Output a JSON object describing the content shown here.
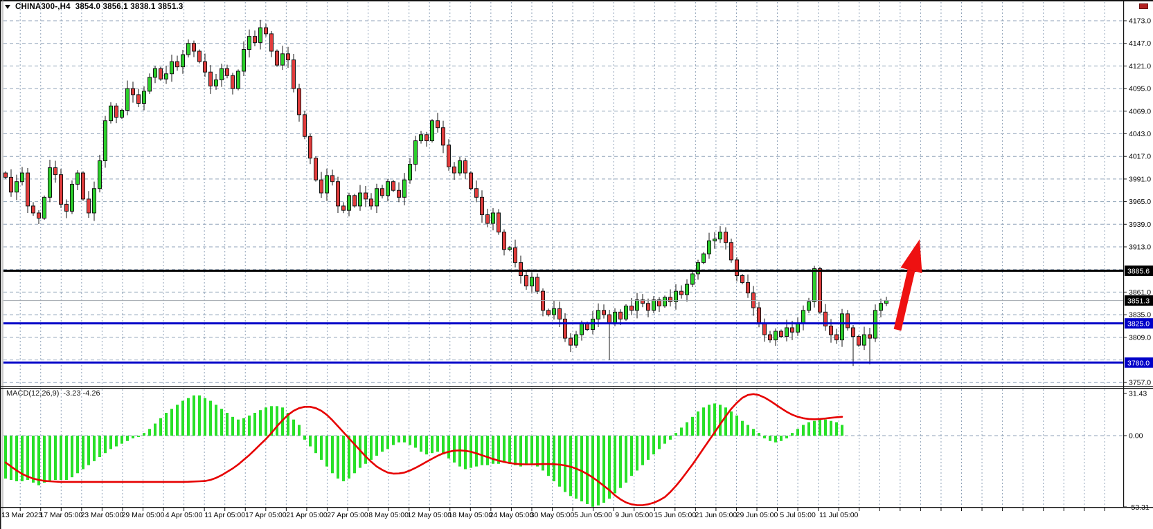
{
  "window": {
    "symbol_period": "CHINA300-,H4",
    "ohlc_text": "3854.0 3856.1 3838.1 3851.3",
    "dropdown_icon": "triangle-down-icon"
  },
  "price_axis": {
    "ticks": [
      "4173.0",
      "4147.0",
      "4121.0",
      "4095.0",
      "4069.0",
      "4043.0",
      "4017.0",
      "3991.0",
      "3965.0",
      "3939.0",
      "3913.0",
      "3861.0",
      "3835.0",
      "3809.0",
      "3757.0"
    ]
  },
  "badges": [
    {
      "label": "3885.6",
      "value": 3885.6,
      "bg": "#000000",
      "fg": "#ffffff"
    },
    {
      "label": "3851.3",
      "value": 3851.3,
      "bg": "#000000",
      "fg": "#ffffff"
    },
    {
      "label": "3825.0",
      "value": 3825.0,
      "bg": "#0000c8",
      "fg": "#ffffff"
    },
    {
      "label": "3780.0",
      "value": 3780.0,
      "bg": "#0000c8",
      "fg": "#ffffff"
    }
  ],
  "time_axis": {
    "labels": [
      "13 Mar 2023",
      "17 Mar 05:00",
      "23 Mar 05:00",
      "29 Mar 05:00",
      "4 Apr 05:00",
      "11 Apr 05:00",
      "17 Apr 05:00",
      "21 Apr 05:00",
      "27 Apr 05:00",
      "8 May 05:00",
      "12 May 05:00",
      "18 May 05:00",
      "24 May 05:00",
      "30 May 05:00",
      "5 Jun 05:00",
      "9 Jun 05:00",
      "15 Jun 05:00",
      "21 Jun 05:00",
      "29 Jun 05:00",
      "5 Jul 05:00",
      "11 Jul 05:00"
    ]
  },
  "macd_panel": {
    "label": "MACD(12,26,9)",
    "values_text": "-3.23 -4.26",
    "axis_ticks": [
      {
        "label": "31.43",
        "value": 31.43
      },
      {
        "label": "0.00",
        "value": 0
      },
      {
        "label": "-53.31",
        "value": -53.31
      }
    ]
  },
  "chart_data": {
    "type": "candlestick",
    "title": "CHINA300-,H4",
    "timeframe": "H4",
    "price_axis_range": [
      3757,
      4173
    ],
    "price_grid_step": 26,
    "levels": {
      "resistance_black": 3885.6,
      "current_price": 3851.3,
      "support_blue_upper": 3825.0,
      "support_blue_lower": 3780.0
    },
    "open_first": 3998,
    "closes": [
      3993,
      3976,
      3988,
      3998,
      3960,
      3952,
      3946,
      3970,
      4004,
      3996,
      3962,
      3954,
      3985,
      3998,
      3968,
      3952,
      3980,
      4012,
      4058,
      4075,
      4062,
      4070,
      4095,
      4088,
      4078,
      4092,
      4108,
      4118,
      4106,
      4112,
      4126,
      4120,
      4134,
      4147,
      4138,
      4126,
      4114,
      4098,
      4105,
      4118,
      4110,
      4095,
      4115,
      4140,
      4155,
      4148,
      4165,
      4158,
      4138,
      4122,
      4135,
      4128,
      4095,
      4065,
      4040,
      4015,
      3990,
      3975,
      3995,
      3988,
      3960,
      3955,
      3972,
      3960,
      3975,
      3968,
      3960,
      3980,
      3972,
      3988,
      3978,
      3970,
      3990,
      4008,
      4035,
      4042,
      4035,
      4058,
      4050,
      4030,
      4005,
      3998,
      4012,
      3998,
      3980,
      3970,
      3950,
      3940,
      3952,
      3930,
      3910,
      3912,
      3895,
      3880,
      3868,
      3878,
      3862,
      3840,
      3835,
      3842,
      3830,
      3808,
      3800,
      3812,
      3825,
      3818,
      3830,
      3840,
      3835,
      3825,
      3838,
      3830,
      3845,
      3840,
      3852,
      3848,
      3840,
      3852,
      3845,
      3855,
      3850,
      3862,
      3858,
      3870,
      3882,
      3895,
      3905,
      3920,
      3922,
      3930,
      3918,
      3898,
      3880,
      3872,
      3860,
      3843,
      3825,
      3812,
      3806,
      3816,
      3810,
      3820,
      3815,
      3825,
      3840,
      3850,
      3888,
      3838,
      3822,
      3812,
      3806,
      3836,
      3820,
      3810,
      3800,
      3812,
      3808,
      3840,
      3848,
      3851.3
    ],
    "special_wicks": {
      "46": {
        "high": 4174
      },
      "109": {
        "low": 3783
      },
      "153": {
        "low": 3776
      },
      "156": {
        "low": 3778
      }
    },
    "colors": {
      "bull": "#2bcf2b",
      "bear": "#e03c3c",
      "candle_border": "#151515",
      "grid": "#8fa2b8",
      "level_blue": "#0000c8",
      "level_black": "#000000",
      "current_price_line": "#a0a6ad",
      "macd_hist": "#28e028",
      "macd_signal": "#e60000",
      "arrow": "#ee1111",
      "axis_text": "#000000",
      "badge_black": "#000000",
      "badge_blue": "#0000c8"
    },
    "macd": {
      "params": "12,26,9",
      "last_values": [
        -3.23,
        -4.26
      ],
      "axis_range": [
        -53.31,
        31.43
      ],
      "hist": [
        -32,
        -33,
        -34,
        -34,
        -33,
        -35,
        -37,
        -35,
        -34,
        -33,
        -33,
        -33,
        -31,
        -28,
        -25,
        -22,
        -19,
        -16,
        -13,
        -10,
        -8,
        -6,
        -4,
        -2,
        -1,
        2,
        5,
        9,
        13,
        17,
        20,
        23,
        26,
        28,
        30,
        30,
        28,
        26,
        23,
        20,
        17,
        14,
        12,
        13,
        15,
        17,
        19,
        21,
        22,
        22,
        21,
        17,
        12,
        8,
        -3,
        -8,
        -13,
        -18,
        -23,
        -28,
        -32,
        -34,
        -32,
        -28,
        -24,
        -21,
        -18,
        -15,
        -12,
        -10,
        -7,
        -5,
        -5,
        -7,
        -9,
        -12,
        -14,
        -13,
        -12,
        -14,
        -17,
        -20,
        -23,
        -25,
        -24,
        -23,
        -22,
        -22,
        -21,
        -21,
        -20,
        -21,
        -22,
        -23,
        -22,
        -21,
        -23,
        -26,
        -30,
        -34,
        -38,
        -42,
        -45,
        -47,
        -49,
        -51,
        -53,
        -52,
        -50,
        -47,
        -43,
        -39,
        -35,
        -30,
        -26,
        -22,
        -18,
        -14,
        -10,
        -6,
        -3,
        2,
        6,
        10,
        14,
        18,
        21,
        23,
        24,
        23,
        21,
        18,
        15,
        11,
        8,
        5,
        2,
        -2,
        -4,
        -5,
        -4,
        -2,
        2,
        5,
        8,
        10,
        11,
        12,
        12,
        11,
        10,
        8,
        null,
        null,
        null,
        null,
        null,
        null,
        null,
        null
      ],
      "signal": [
        -20,
        -23,
        -26,
        -28.5,
        -30.5,
        -32,
        -33,
        -33.7,
        -34,
        -34.3,
        -34.5,
        -34.5,
        -34.5,
        -34.5,
        -34.5,
        -34.5,
        -34.5,
        -34.5,
        -34.5,
        -34.5,
        -34.5,
        -34.5,
        -34.5,
        -34.5,
        -34.5,
        -34.5,
        -34.5,
        -34.5,
        -34.5,
        -34.5,
        -34.5,
        -34.5,
        -34.5,
        -34.4,
        -34.2,
        -34,
        -33.8,
        -33,
        -31.5,
        -29.5,
        -27,
        -24.5,
        -21.5,
        -18,
        -14.5,
        -10.5,
        -6.5,
        -2.5,
        2,
        7,
        11.5,
        15.5,
        18.5,
        20.5,
        21.5,
        21.5,
        20.5,
        18.5,
        15.5,
        11.5,
        7,
        2.5,
        -2,
        -6.5,
        -11,
        -15.5,
        -19.5,
        -23,
        -25.5,
        -27.5,
        -28.3,
        -28.2,
        -27.5,
        -26,
        -24,
        -21.8,
        -19.5,
        -17.2,
        -15,
        -13.2,
        -12,
        -11.2,
        -11,
        -11.3,
        -12,
        -13.2,
        -14.6,
        -16,
        -17.4,
        -18.6,
        -19.6,
        -20.4,
        -21,
        -21.3,
        -21.4,
        -21.4,
        -21.3,
        -21.2,
        -21.2,
        -21.3,
        -21.6,
        -22.2,
        -23.2,
        -24.6,
        -26.4,
        -28.6,
        -31.2,
        -34.2,
        -37.4,
        -40.6,
        -44.5,
        -47.5,
        -49.8,
        -51.2,
        -51.8,
        -51.8,
        -51.2,
        -50,
        -48.2,
        -45.8,
        -42,
        -37.5,
        -32.5,
        -27,
        -21.5,
        -15.5,
        -9.5,
        -3.5,
        2.5,
        8.5,
        14.5,
        20,
        24.5,
        28.2,
        30.3,
        31,
        30.2,
        28.4,
        26,
        23.2,
        20.4,
        17.8,
        15.6,
        14,
        13,
        12.4,
        12.2,
        12.4,
        12.8,
        13.3,
        13.7,
        14,
        null,
        null,
        null,
        null,
        null,
        null,
        null,
        null
      ]
    },
    "annotation_arrow": {
      "shaft_from": [
        1296,
        477
      ],
      "shaft_to": [
        1316,
        391
      ],
      "tip": [
        1328,
        346
      ],
      "head": [
        [
          1328,
          346
        ],
        [
          1331.5,
          395
        ],
        [
          1300.5,
          387
        ]
      ]
    }
  }
}
